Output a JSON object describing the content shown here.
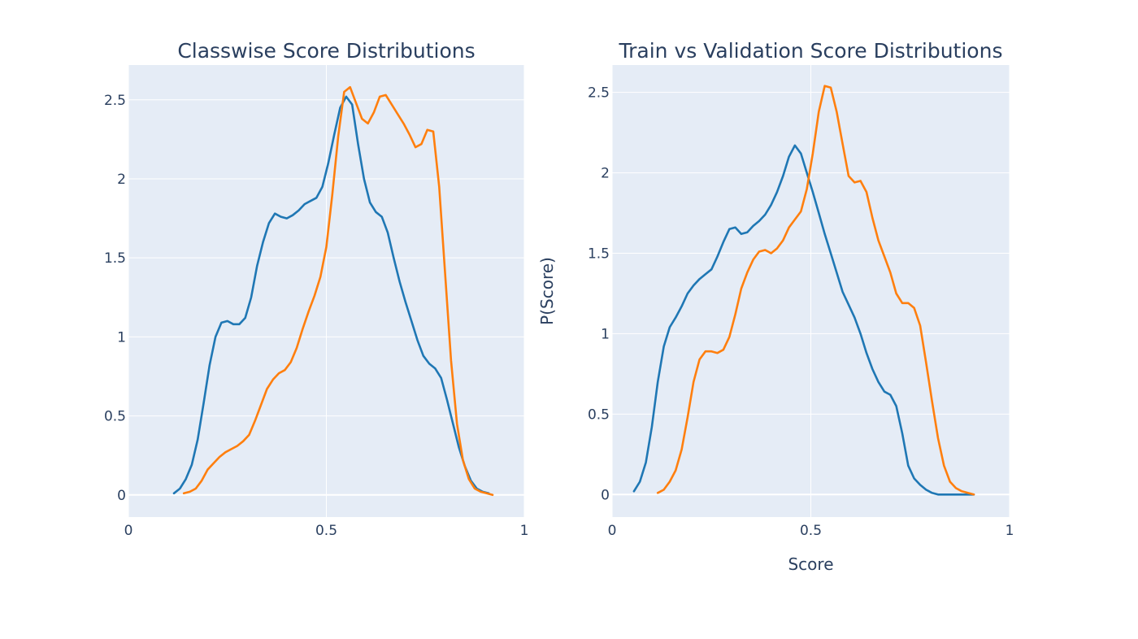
{
  "chart_data": [
    {
      "type": "line",
      "title": "Classwise Score Distributions",
      "xlabel": "",
      "ylabel": "",
      "xlim": [
        0,
        1
      ],
      "ylim": [
        -0.14,
        2.72
      ],
      "xticks": [
        "0",
        "0.5",
        "1"
      ],
      "yticks": [
        "0",
        "0.5",
        "1",
        "1.5",
        "2",
        "2.5"
      ],
      "grid": true,
      "legend": "none",
      "series": [
        {
          "color": "#1f77b4",
          "x": [
            0.115,
            0.13,
            0.145,
            0.16,
            0.175,
            0.19,
            0.205,
            0.22,
            0.235,
            0.25,
            0.265,
            0.28,
            0.295,
            0.31,
            0.325,
            0.34,
            0.355,
            0.37,
            0.385,
            0.4,
            0.415,
            0.43,
            0.445,
            0.46,
            0.475,
            0.49,
            0.505,
            0.52,
            0.535,
            0.55,
            0.565,
            0.58,
            0.595,
            0.61,
            0.625,
            0.64,
            0.655,
            0.67,
            0.685,
            0.7,
            0.715,
            0.73,
            0.745,
            0.76,
            0.775,
            0.79,
            0.805,
            0.82,
            0.835,
            0.85,
            0.865,
            0.88,
            0.895,
            0.91
          ],
          "y": [
            0.01,
            0.04,
            0.1,
            0.19,
            0.35,
            0.58,
            0.82,
            1.0,
            1.09,
            1.1,
            1.08,
            1.08,
            1.12,
            1.25,
            1.45,
            1.6,
            1.72,
            1.78,
            1.76,
            1.75,
            1.77,
            1.8,
            1.84,
            1.86,
            1.88,
            1.95,
            2.1,
            2.28,
            2.45,
            2.52,
            2.47,
            2.22,
            2.0,
            1.85,
            1.79,
            1.76,
            1.66,
            1.5,
            1.35,
            1.22,
            1.1,
            0.98,
            0.88,
            0.83,
            0.8,
            0.74,
            0.6,
            0.45,
            0.3,
            0.18,
            0.09,
            0.04,
            0.02,
            0.01
          ]
        },
        {
          "color": "#ff7f0e",
          "x": [
            0.14,
            0.155,
            0.17,
            0.185,
            0.2,
            0.215,
            0.23,
            0.245,
            0.26,
            0.275,
            0.29,
            0.305,
            0.32,
            0.335,
            0.35,
            0.365,
            0.38,
            0.395,
            0.41,
            0.425,
            0.44,
            0.455,
            0.47,
            0.485,
            0.5,
            0.515,
            0.53,
            0.545,
            0.56,
            0.575,
            0.59,
            0.605,
            0.62,
            0.635,
            0.65,
            0.665,
            0.68,
            0.695,
            0.71,
            0.725,
            0.74,
            0.755,
            0.77,
            0.785,
            0.8,
            0.815,
            0.83,
            0.845,
            0.86,
            0.875,
            0.89,
            0.905,
            0.92
          ],
          "y": [
            0.01,
            0.02,
            0.04,
            0.09,
            0.16,
            0.2,
            0.24,
            0.27,
            0.29,
            0.31,
            0.34,
            0.38,
            0.47,
            0.57,
            0.67,
            0.73,
            0.77,
            0.79,
            0.84,
            0.93,
            1.05,
            1.16,
            1.26,
            1.38,
            1.57,
            1.9,
            2.27,
            2.55,
            2.58,
            2.48,
            2.38,
            2.35,
            2.42,
            2.52,
            2.53,
            2.47,
            2.41,
            2.35,
            2.28,
            2.2,
            2.22,
            2.31,
            2.3,
            1.95,
            1.4,
            0.85,
            0.45,
            0.22,
            0.1,
            0.04,
            0.02,
            0.01,
            0.0
          ]
        }
      ]
    },
    {
      "type": "line",
      "title": "Train vs Validation Score Distributions",
      "xlabel": "Score",
      "ylabel": "P(Score)",
      "xlim": [
        0,
        1
      ],
      "ylim": [
        -0.14,
        2.67
      ],
      "xticks": [
        "0",
        "0.5",
        "1"
      ],
      "yticks": [
        "0",
        "0.5",
        "1",
        "1.5",
        "2",
        "2.5"
      ],
      "grid": true,
      "legend": "none",
      "series": [
        {
          "color": "#1f77b4",
          "x": [
            0.055,
            0.07,
            0.085,
            0.1,
            0.115,
            0.13,
            0.145,
            0.16,
            0.175,
            0.19,
            0.205,
            0.22,
            0.235,
            0.25,
            0.265,
            0.28,
            0.295,
            0.31,
            0.325,
            0.34,
            0.355,
            0.37,
            0.385,
            0.4,
            0.415,
            0.43,
            0.445,
            0.46,
            0.475,
            0.49,
            0.505,
            0.52,
            0.535,
            0.55,
            0.565,
            0.58,
            0.595,
            0.61,
            0.625,
            0.64,
            0.655,
            0.67,
            0.685,
            0.7,
            0.715,
            0.73,
            0.745,
            0.76,
            0.775,
            0.79,
            0.805,
            0.82,
            0.835,
            0.85,
            0.865,
            0.88,
            0.895,
            0.91
          ],
          "y": [
            0.02,
            0.08,
            0.2,
            0.42,
            0.7,
            0.92,
            1.04,
            1.1,
            1.17,
            1.25,
            1.3,
            1.34,
            1.37,
            1.4,
            1.48,
            1.57,
            1.65,
            1.66,
            1.62,
            1.63,
            1.67,
            1.7,
            1.74,
            1.8,
            1.88,
            1.98,
            2.1,
            2.17,
            2.12,
            2.0,
            1.88,
            1.75,
            1.62,
            1.5,
            1.38,
            1.26,
            1.18,
            1.1,
            1.0,
            0.88,
            0.78,
            0.7,
            0.64,
            0.62,
            0.55,
            0.38,
            0.18,
            0.1,
            0.06,
            0.03,
            0.01,
            0.0,
            0.0,
            0.0,
            0.0,
            0.0,
            0.0,
            0.0
          ]
        },
        {
          "color": "#ff7f0e",
          "x": [
            0.115,
            0.13,
            0.145,
            0.16,
            0.175,
            0.19,
            0.205,
            0.22,
            0.235,
            0.25,
            0.265,
            0.28,
            0.295,
            0.31,
            0.325,
            0.34,
            0.355,
            0.37,
            0.385,
            0.4,
            0.415,
            0.43,
            0.445,
            0.46,
            0.475,
            0.49,
            0.505,
            0.52,
            0.535,
            0.55,
            0.565,
            0.58,
            0.595,
            0.61,
            0.625,
            0.64,
            0.655,
            0.67,
            0.685,
            0.7,
            0.715,
            0.73,
            0.745,
            0.76,
            0.775,
            0.79,
            0.805,
            0.82,
            0.835,
            0.85,
            0.865,
            0.88,
            0.895,
            0.91
          ],
          "y": [
            0.01,
            0.03,
            0.08,
            0.15,
            0.28,
            0.48,
            0.7,
            0.84,
            0.89,
            0.89,
            0.88,
            0.9,
            0.98,
            1.12,
            1.28,
            1.38,
            1.46,
            1.51,
            1.52,
            1.5,
            1.53,
            1.58,
            1.66,
            1.71,
            1.76,
            1.9,
            2.12,
            2.38,
            2.54,
            2.53,
            2.38,
            2.18,
            1.98,
            1.94,
            1.95,
            1.88,
            1.72,
            1.58,
            1.48,
            1.38,
            1.25,
            1.19,
            1.19,
            1.16,
            1.05,
            0.82,
            0.58,
            0.35,
            0.18,
            0.08,
            0.04,
            0.02,
            0.01,
            0.0
          ]
        }
      ]
    }
  ]
}
